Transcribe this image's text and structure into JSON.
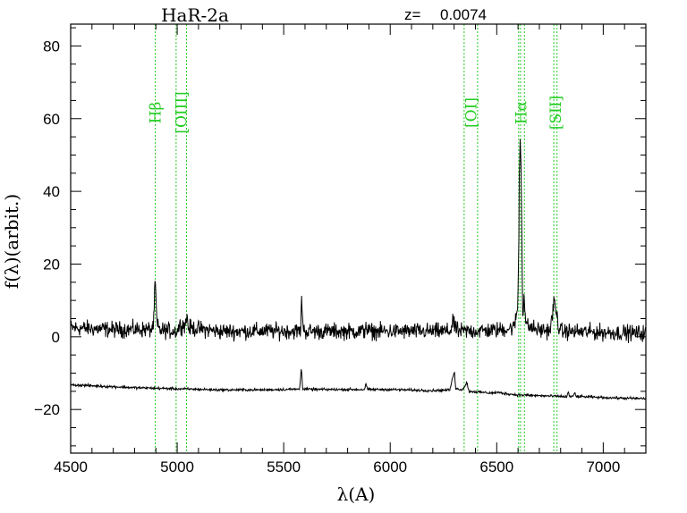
{
  "chart_data": {
    "type": "line",
    "title": "HaR-2a",
    "redshift_label": "z=",
    "redshift_value": "0.0074",
    "xlabel": "λ(A)",
    "ylabel": "f(λ)(arbit.)",
    "xlim": [
      4500,
      7200
    ],
    "ylim": [
      -32,
      86
    ],
    "x_ticks": [
      4500,
      5000,
      5500,
      6000,
      6500,
      7000
    ],
    "y_ticks": [
      -20,
      0,
      20,
      40,
      60,
      80
    ],
    "grid": false,
    "emission_lines": [
      {
        "label": "Hβ",
        "x": [
          4897
        ]
      },
      {
        "label": "[OIII]",
        "x": [
          4995,
          5044
        ]
      },
      {
        "label": "[OI]",
        "x": [
          6347,
          6410
        ]
      },
      {
        "label": "Hα",
        "x": [
          6603,
          6612,
          6630
        ]
      },
      {
        "label": "[SII]",
        "x": [
          6768,
          6783
        ]
      }
    ],
    "series": [
      {
        "noise": 2.2,
        "x": [
          4500,
          4700,
          4880,
          4890,
          4893,
          4897,
          4901,
          4906,
          4920,
          5000,
          5010,
          5040,
          5046,
          5052,
          5200,
          5580,
          5582,
          5585,
          5589,
          5592,
          5600,
          5880,
          5886,
          5892,
          6000,
          6280,
          6290,
          6294,
          6298,
          6320,
          6500,
          6580,
          6590,
          6598,
          6603,
          6606,
          6610,
          6614,
          6618,
          6622,
          6626,
          6629,
          6632,
          6640,
          6700,
          6750,
          6760,
          6768,
          6775,
          6782,
          6790,
          6800,
          7000,
          7200
        ],
        "y": [
          2.5,
          2.0,
          2.0,
          4.0,
          10.0,
          16.0,
          9.0,
          3.0,
          1.8,
          1.6,
          3.0,
          3.5,
          6.0,
          2.5,
          1.5,
          1.6,
          8.0,
          10.0,
          6.0,
          2.0,
          1.5,
          1.5,
          4.0,
          1.5,
          1.5,
          1.5,
          3.0,
          6.0,
          3.0,
          1.5,
          1.8,
          2.5,
          5.0,
          8.0,
          22.0,
          44.0,
          54.0,
          48.0,
          28.0,
          6.0,
          9.0,
          12.0,
          7.0,
          3.0,
          1.8,
          1.8,
          5.0,
          10.0,
          8.0,
          6.0,
          3.0,
          1.5,
          1.2,
          1.0
        ]
      },
      {
        "noise": 0.35,
        "x": [
          4500,
          4800,
          5000,
          5200,
          5400,
          5575,
          5579,
          5582,
          5585,
          5589,
          5700,
          5880,
          5887,
          5893,
          6000,
          6200,
          6280,
          6297,
          6302,
          6307,
          6340,
          6361,
          6366,
          6372,
          6480,
          6500,
          6550,
          6600,
          6700,
          6800,
          6830,
          6836,
          6842,
          6860,
          6866,
          6872,
          6950,
          7100,
          7200
        ],
        "y": [
          -13.2,
          -14.0,
          -14.3,
          -14.6,
          -14.6,
          -14.4,
          -11.0,
          -8.7,
          -10.0,
          -14.4,
          -14.5,
          -14.5,
          -12.8,
          -14.5,
          -14.5,
          -14.8,
          -14.6,
          -10.3,
          -9.5,
          -14.3,
          -14.5,
          -12.5,
          -14.5,
          -15.0,
          -15.5,
          -15.3,
          -15.7,
          -16.0,
          -16.2,
          -16.4,
          -16.5,
          -15.0,
          -16.5,
          -16.4,
          -15.2,
          -16.4,
          -16.6,
          -16.9,
          -17.0
        ]
      }
    ]
  }
}
